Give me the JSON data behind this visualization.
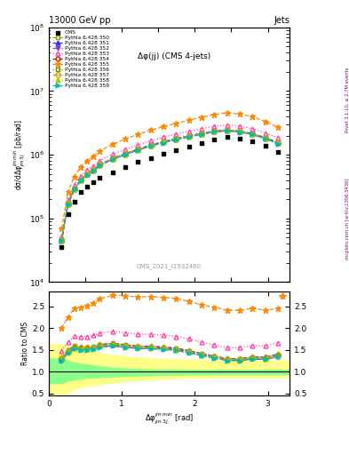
{
  "title_top": "13000 GeV pp",
  "title_right": "Jets",
  "plot_title": "Δφ(jj) (CMS 4-jets)",
  "xlabel": "Δφ$^{jm\\,min}_{jm\\,3j}$ [rad]",
  "ylabel_main": "dσ/dΔφ$^{jm\\,min}_{jm\\,3j}$ [pb/rad]",
  "ylabel_ratio": "Ratio to CMS",
  "watermark": "CMS_2021_I1932460",
  "right_label": "mcplots.cern.ch [arXiv:1306.3436]",
  "right_label2": "Rivet 3.1.10, ≥ 2.7M events",
  "xlim": [
    0,
    3.3
  ],
  "ylim_main": [
    10000.0,
    100000000.0
  ],
  "ylim_ratio": [
    0.45,
    2.85
  ],
  "x_cms": [
    0.175,
    0.262,
    0.349,
    0.436,
    0.524,
    0.611,
    0.698,
    0.873,
    1.047,
    1.222,
    1.396,
    1.571,
    1.745,
    1.92,
    2.094,
    2.269,
    2.443,
    2.618,
    2.792,
    2.967,
    3.142
  ],
  "y_cms": [
    35000,
    115000,
    185000,
    260000,
    320000,
    365000,
    430000,
    530000,
    640000,
    770000,
    890000,
    1020000,
    1160000,
    1330000,
    1530000,
    1730000,
    1880000,
    1800000,
    1600000,
    1380000,
    1100000
  ],
  "pythia_x": [
    0.175,
    0.262,
    0.349,
    0.436,
    0.524,
    0.611,
    0.698,
    0.873,
    1.047,
    1.222,
    1.396,
    1.571,
    1.745,
    1.92,
    2.094,
    2.269,
    2.443,
    2.618,
    2.792,
    2.967,
    3.142
  ],
  "pythia_350": [
    46000,
    172000,
    295000,
    408000,
    502000,
    578000,
    700000,
    876000,
    1038000,
    1223000,
    1413000,
    1600000,
    1787000,
    1977000,
    2167000,
    2357000,
    2447000,
    2347000,
    2147000,
    1847000,
    1547000
  ],
  "pythia_351": [
    46000,
    172000,
    295000,
    408000,
    502000,
    578000,
    700000,
    876000,
    1038000,
    1223000,
    1413000,
    1600000,
    1787000,
    1977000,
    2167000,
    2357000,
    2447000,
    2347000,
    2147000,
    1847000,
    1547000
  ],
  "pythia_352": [
    44000,
    165000,
    283000,
    393000,
    483000,
    557000,
    675000,
    845000,
    1002000,
    1181000,
    1364000,
    1546000,
    1727000,
    1910000,
    2095000,
    2280000,
    2368000,
    2268000,
    2070000,
    1775000,
    1478000
  ],
  "pythia_353": [
    52000,
    194000,
    336000,
    468000,
    580000,
    670000,
    813000,
    1022000,
    1213000,
    1433000,
    1660000,
    1880000,
    2104000,
    2337000,
    2567000,
    2800000,
    2920000,
    2800000,
    2567000,
    2200000,
    1830000
  ],
  "pythia_354": [
    45000,
    168000,
    288000,
    399000,
    491000,
    566000,
    686000,
    859000,
    1018000,
    1200000,
    1386000,
    1570000,
    1754000,
    1940000,
    2128000,
    2315000,
    2405000,
    2305000,
    2108000,
    1812000,
    1515000
  ],
  "pythia_355": [
    70000,
    260000,
    455000,
    645000,
    808000,
    940000,
    1150000,
    1460000,
    1760000,
    2090000,
    2430000,
    2760000,
    3110000,
    3480000,
    3880000,
    4290000,
    4540000,
    4340000,
    3930000,
    3330000,
    2700000
  ],
  "pythia_356": [
    45000,
    168000,
    288000,
    399000,
    491000,
    566000,
    686000,
    859000,
    1018000,
    1200000,
    1386000,
    1570000,
    1754000,
    1940000,
    2128000,
    2315000,
    2405000,
    2305000,
    2108000,
    1812000,
    1515000
  ],
  "pythia_357": [
    46000,
    170000,
    291000,
    403000,
    496000,
    572000,
    693000,
    868000,
    1029000,
    1213000,
    1400000,
    1585000,
    1771000,
    1959000,
    2148000,
    2337000,
    2427000,
    2327000,
    2128000,
    1830000,
    1530000
  ],
  "pythia_358": [
    45000,
    167000,
    286000,
    397000,
    488000,
    563000,
    682000,
    854000,
    1013000,
    1194000,
    1379000,
    1562000,
    1745000,
    1930000,
    2117000,
    2304000,
    2393000,
    2293000,
    2095000,
    1799000,
    1502000
  ],
  "pythia_359": [
    44000,
    165000,
    283000,
    392000,
    482000,
    556000,
    674000,
    845000,
    1002000,
    1181000,
    1364000,
    1546000,
    1728000,
    1912000,
    2098000,
    2284000,
    2372000,
    2272000,
    2074000,
    1780000,
    1485000
  ],
  "series": [
    {
      "label": "Pythia 6.428 350",
      "color": "#999900",
      "marker": "s",
      "linestyle": "--",
      "fillstyle": "none",
      "key": "pythia_350"
    },
    {
      "label": "Pythia 6.428 351",
      "color": "#3333ff",
      "marker": "^",
      "linestyle": "--",
      "fillstyle": "full",
      "key": "pythia_351"
    },
    {
      "label": "Pythia 6.428 352",
      "color": "#9933cc",
      "marker": "v",
      "linestyle": "-.",
      "fillstyle": "full",
      "key": "pythia_352"
    },
    {
      "label": "Pythia 6.428 353",
      "color": "#ff44aa",
      "marker": "^",
      "linestyle": ":",
      "fillstyle": "none",
      "key": "pythia_353"
    },
    {
      "label": "Pythia 6.428 354",
      "color": "#cc2200",
      "marker": "o",
      "linestyle": "--",
      "fillstyle": "none",
      "key": "pythia_354"
    },
    {
      "label": "Pythia 6.428 355",
      "color": "#ff8800",
      "marker": "*",
      "linestyle": "--",
      "fillstyle": "full",
      "key": "pythia_355"
    },
    {
      "label": "Pythia 6.428 356",
      "color": "#669900",
      "marker": "s",
      "linestyle": ":",
      "fillstyle": "none",
      "key": "pythia_356"
    },
    {
      "label": "Pythia 6.428 357",
      "color": "#ccaa00",
      "marker": "D",
      "linestyle": "-.",
      "fillstyle": "none",
      "key": "pythia_357"
    },
    {
      "label": "Pythia 6.428 358",
      "color": "#aacc00",
      "marker": "^",
      "linestyle": ":",
      "fillstyle": "full",
      "key": "pythia_358"
    },
    {
      "label": "Pythia 6.428 359",
      "color": "#00bbbb",
      "marker": ">",
      "linestyle": "--",
      "fillstyle": "full",
      "key": "pythia_359"
    }
  ],
  "yellow_band_x": [
    0.0,
    0.175,
    0.262,
    0.349,
    0.436,
    0.524,
    0.611,
    0.698,
    0.873,
    1.047,
    1.222,
    1.396,
    1.571,
    1.745,
    1.92,
    2.094,
    2.269,
    2.443,
    2.618,
    2.792,
    2.967,
    3.142,
    3.3
  ],
  "yellow_band_lo": [
    0.45,
    0.45,
    0.52,
    0.58,
    0.63,
    0.66,
    0.68,
    0.7,
    0.74,
    0.77,
    0.79,
    0.81,
    0.83,
    0.84,
    0.85,
    0.85,
    0.86,
    0.86,
    0.86,
    0.86,
    0.86,
    0.86,
    0.86
  ],
  "yellow_band_hi": [
    1.65,
    1.65,
    1.58,
    1.54,
    1.51,
    1.49,
    1.47,
    1.45,
    1.4,
    1.37,
    1.35,
    1.33,
    1.31,
    1.3,
    1.29,
    1.28,
    1.27,
    1.27,
    1.27,
    1.27,
    1.27,
    1.27,
    1.27
  ],
  "green_band_lo": [
    0.73,
    0.73,
    0.78,
    0.81,
    0.83,
    0.85,
    0.86,
    0.87,
    0.88,
    0.89,
    0.9,
    0.91,
    0.92,
    0.92,
    0.93,
    0.93,
    0.93,
    0.93,
    0.93,
    0.93,
    0.93,
    0.93,
    0.93
  ],
  "green_band_hi": [
    1.32,
    1.32,
    1.27,
    1.23,
    1.2,
    1.18,
    1.16,
    1.14,
    1.11,
    1.09,
    1.08,
    1.07,
    1.07,
    1.07,
    1.06,
    1.06,
    1.06,
    1.06,
    1.06,
    1.06,
    1.06,
    1.06,
    1.06
  ]
}
